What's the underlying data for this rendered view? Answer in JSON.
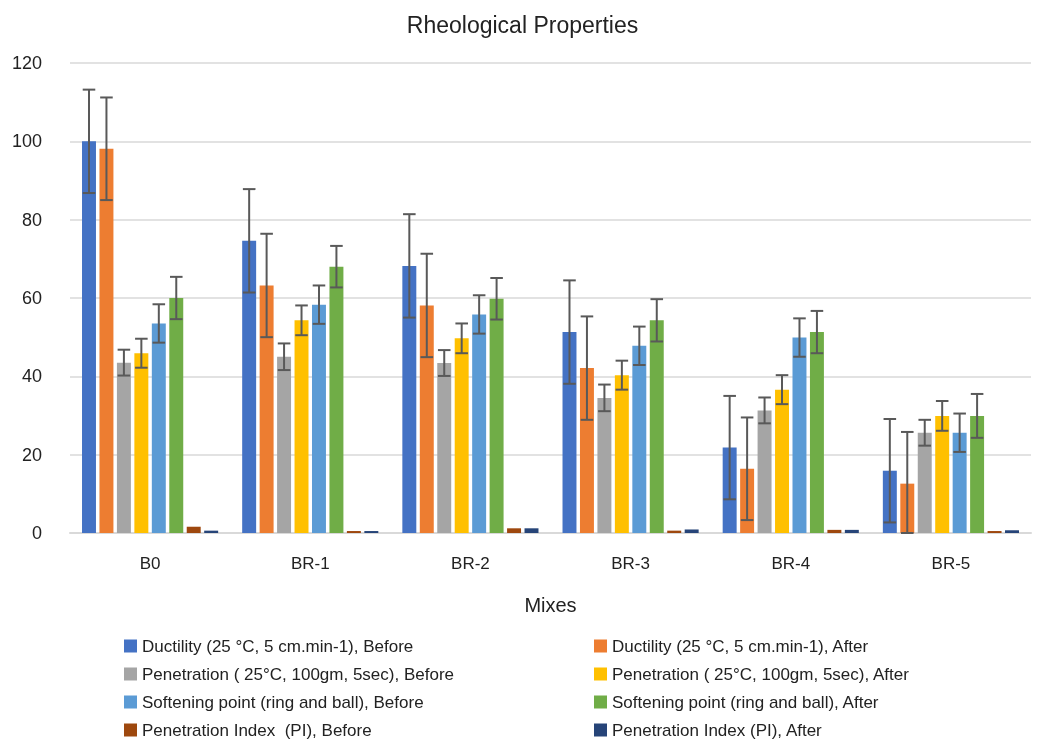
{
  "chart_data": {
    "type": "bar",
    "title": "Rheological Properties",
    "xlabel": "Mixes",
    "categories": [
      "B0",
      "BR-1",
      "BR-2",
      "BR-3",
      "BR-4",
      "BR-5"
    ],
    "series": [
      {
        "name": "Ductility (25 °C, 5 cm.min-1), Before",
        "color": "#4472c4",
        "values": [
          100,
          74.6,
          68.2,
          51.3,
          21.8,
          15.9
        ],
        "errors": [
          13.2,
          13.2,
          13.2,
          13.2,
          13.2,
          13.2
        ]
      },
      {
        "name": "Ductility (25 °C, 5 cm.min-1), After",
        "color": "#ed7d31",
        "values": [
          98.1,
          63.2,
          58.1,
          42.1,
          16.4,
          12.6
        ],
        "errors": [
          13.1,
          13.2,
          13.2,
          13.2,
          13.1,
          [
            0,
            25.8
          ]
        ]
      },
      {
        "name": "Penetration ( 25°C, 100gm, 5sec), Before",
        "color": "#a5a5a5",
        "values": [
          43.5,
          45,
          43.4,
          34.5,
          31.3,
          25.6
        ],
        "errors": [
          3.3,
          3.4,
          3.3,
          3.4,
          3.3,
          3.3
        ]
      },
      {
        "name": "Penetration ( 25°C, 100gm, 5sec), After",
        "color": "#ffc000",
        "values": [
          45.9,
          54.3,
          49.7,
          40.3,
          36.6,
          29.9
        ],
        "errors": [
          3.7,
          3.8,
          3.8,
          3.7,
          3.7,
          3.8
        ]
      },
      {
        "name": "Softening point (ring and ball), Before",
        "color": "#5b9bd5",
        "values": [
          53.5,
          58.3,
          55.8,
          47.8,
          49.9,
          25.6
        ],
        "errors": [
          4.9,
          4.9,
          4.9,
          4.9,
          4.9,
          4.9
        ]
      },
      {
        "name": "Softening point (ring and ball), After",
        "color": "#70ad47",
        "values": [
          60,
          68,
          59.8,
          54.3,
          51.3,
          29.9
        ],
        "errors": [
          5.4,
          5.3,
          5.3,
          5.4,
          5.4,
          5.6
        ]
      },
      {
        "name": "Penetration Index  (PI), Before",
        "color": "#9e480e",
        "values": [
          1.6,
          0.5,
          1.2,
          0.6,
          0.8,
          0.5
        ]
      },
      {
        "name": "Penetration Index (PI), After",
        "color": "#264478",
        "values": [
          0.6,
          0.5,
          1.2,
          0.9,
          0.8,
          0.7
        ]
      }
    ],
    "ylim": [
      0,
      120
    ],
    "yticks": [
      0,
      20,
      40,
      60,
      80,
      100,
      120
    ],
    "grid": "y",
    "legend": "bottom"
  }
}
